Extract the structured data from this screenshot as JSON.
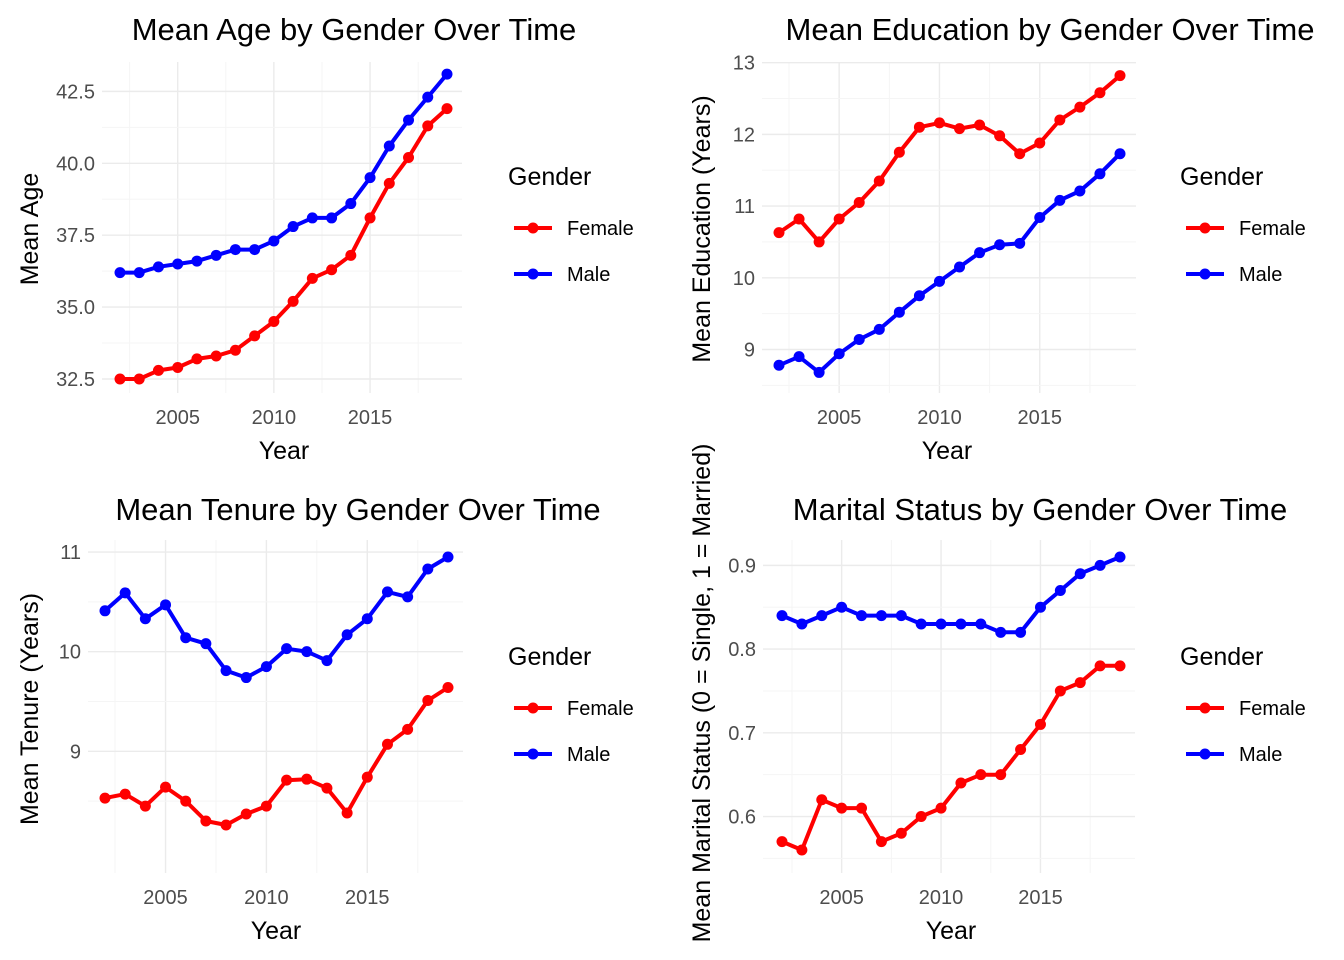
{
  "legend": {
    "title": "Gender",
    "entries": [
      {
        "name": "Female",
        "color": "#ff0000"
      },
      {
        "name": "Male",
        "color": "#0000ff"
      }
    ]
  },
  "chart_data": [
    {
      "type": "line",
      "title": "Mean Age by Gender Over Time",
      "xlabel": "Year",
      "ylabel": "Mean Age",
      "xlim": [
        2002,
        2019
      ],
      "ylim": [
        32.5,
        43.0
      ],
      "x_ticks": [
        2005,
        2010,
        2015
      ],
      "y_ticks": [
        32.5,
        35.0,
        37.5,
        40.0,
        42.5
      ],
      "y_tick_labels": [
        "32.5",
        "35.0",
        "37.5",
        "40.0",
        "42.5"
      ],
      "grid": true,
      "legend_position": "right",
      "x": [
        2002,
        2003,
        2004,
        2005,
        2006,
        2007,
        2008,
        2009,
        2010,
        2011,
        2012,
        2013,
        2014,
        2015,
        2016,
        2017,
        2018,
        2019
      ],
      "series": [
        {
          "name": "Female",
          "color": "#ff0000",
          "values": [
            32.5,
            32.5,
            32.8,
            32.9,
            33.2,
            33.3,
            33.5,
            34.0,
            34.5,
            35.2,
            36.0,
            36.3,
            36.8,
            38.1,
            39.3,
            40.2,
            41.3,
            41.9
          ]
        },
        {
          "name": "Male",
          "color": "#0000ff",
          "values": [
            36.2,
            36.2,
            36.4,
            36.5,
            36.6,
            36.8,
            37.0,
            37.0,
            37.3,
            37.8,
            38.1,
            38.1,
            38.6,
            39.5,
            40.6,
            41.5,
            42.3,
            43.1
          ]
        }
      ]
    },
    {
      "type": "line",
      "title": "Mean Education by Gender Over Time",
      "xlabel": "Year",
      "ylabel": "Mean Education (Years)",
      "xlim": [
        2002,
        2019
      ],
      "ylim": [
        8.7,
        12.8
      ],
      "x_ticks": [
        2005,
        2010,
        2015
      ],
      "y_ticks": [
        9,
        10,
        11,
        12,
        13
      ],
      "y_tick_labels": [
        "9",
        "10",
        "11",
        "12",
        "13"
      ],
      "grid": true,
      "legend_position": "right",
      "x": [
        2002,
        2003,
        2004,
        2005,
        2006,
        2007,
        2008,
        2009,
        2010,
        2011,
        2012,
        2013,
        2014,
        2015,
        2016,
        2017,
        2018,
        2019
      ],
      "series": [
        {
          "name": "Female",
          "color": "#ff0000",
          "values": [
            10.63,
            10.82,
            10.5,
            10.82,
            11.05,
            11.35,
            11.75,
            12.1,
            12.16,
            12.08,
            12.13,
            11.98,
            11.73,
            11.88,
            12.2,
            12.38,
            12.58,
            12.82
          ]
        },
        {
          "name": "Male",
          "color": "#0000ff",
          "values": [
            8.78,
            8.9,
            8.68,
            8.94,
            9.14,
            9.28,
            9.52,
            9.75,
            9.95,
            10.15,
            10.35,
            10.46,
            10.48,
            10.84,
            11.08,
            11.21,
            11.45,
            11.73
          ]
        }
      ]
    },
    {
      "type": "line",
      "title": "Mean Tenure by Gender Over Time",
      "xlabel": "Year",
      "ylabel": "Mean Tenure (Years)",
      "xlim": [
        2002,
        2019
      ],
      "ylim": [
        8.25,
        10.95
      ],
      "x_ticks": [
        2005,
        2010,
        2015
      ],
      "y_ticks": [
        9,
        10,
        11
      ],
      "y_tick_labels": [
        "9",
        "10",
        "11"
      ],
      "grid": true,
      "legend_position": "right",
      "x": [
        2002,
        2003,
        2004,
        2005,
        2006,
        2007,
        2008,
        2009,
        2010,
        2011,
        2012,
        2013,
        2014,
        2015,
        2016,
        2017,
        2018,
        2019
      ],
      "series": [
        {
          "name": "Female",
          "color": "#ff0000",
          "values": [
            8.53,
            8.57,
            8.45,
            8.64,
            8.5,
            8.3,
            8.26,
            8.37,
            8.45,
            8.71,
            8.72,
            8.63,
            8.38,
            8.74,
            9.07,
            9.22,
            9.51,
            9.64
          ]
        },
        {
          "name": "Male",
          "color": "#0000ff",
          "values": [
            10.41,
            10.59,
            10.33,
            10.47,
            10.14,
            10.08,
            9.81,
            9.74,
            9.85,
            10.03,
            10.0,
            9.91,
            10.17,
            10.33,
            10.6,
            10.55,
            10.83,
            10.95
          ]
        }
      ]
    },
    {
      "type": "line",
      "title": "Marital Status by Gender Over Time",
      "xlabel": "Year",
      "ylabel": "Mean Marital Status (0 = Single, 1 = Married)",
      "xlim": [
        2002,
        2019
      ],
      "ylim": [
        0.56,
        0.91
      ],
      "x_ticks": [
        2005,
        2010,
        2015
      ],
      "y_ticks": [
        0.6,
        0.7,
        0.8,
        0.9
      ],
      "y_tick_labels": [
        "0.6",
        "0.7",
        "0.8",
        "0.9"
      ],
      "grid": true,
      "legend_position": "right",
      "x": [
        2002,
        2003,
        2004,
        2005,
        2006,
        2007,
        2008,
        2009,
        2010,
        2011,
        2012,
        2013,
        2014,
        2015,
        2016,
        2017,
        2018,
        2019
      ],
      "series": [
        {
          "name": "Female",
          "color": "#ff0000",
          "values": [
            0.57,
            0.56,
            0.62,
            0.61,
            0.61,
            0.57,
            0.58,
            0.6,
            0.61,
            0.64,
            0.65,
            0.65,
            0.68,
            0.71,
            0.75,
            0.76,
            0.78,
            0.78
          ]
        },
        {
          "name": "Male",
          "color": "#0000ff",
          "values": [
            0.84,
            0.83,
            0.84,
            0.85,
            0.84,
            0.84,
            0.84,
            0.83,
            0.83,
            0.83,
            0.83,
            0.82,
            0.82,
            0.85,
            0.87,
            0.89,
            0.9,
            0.91
          ]
        }
      ]
    }
  ]
}
